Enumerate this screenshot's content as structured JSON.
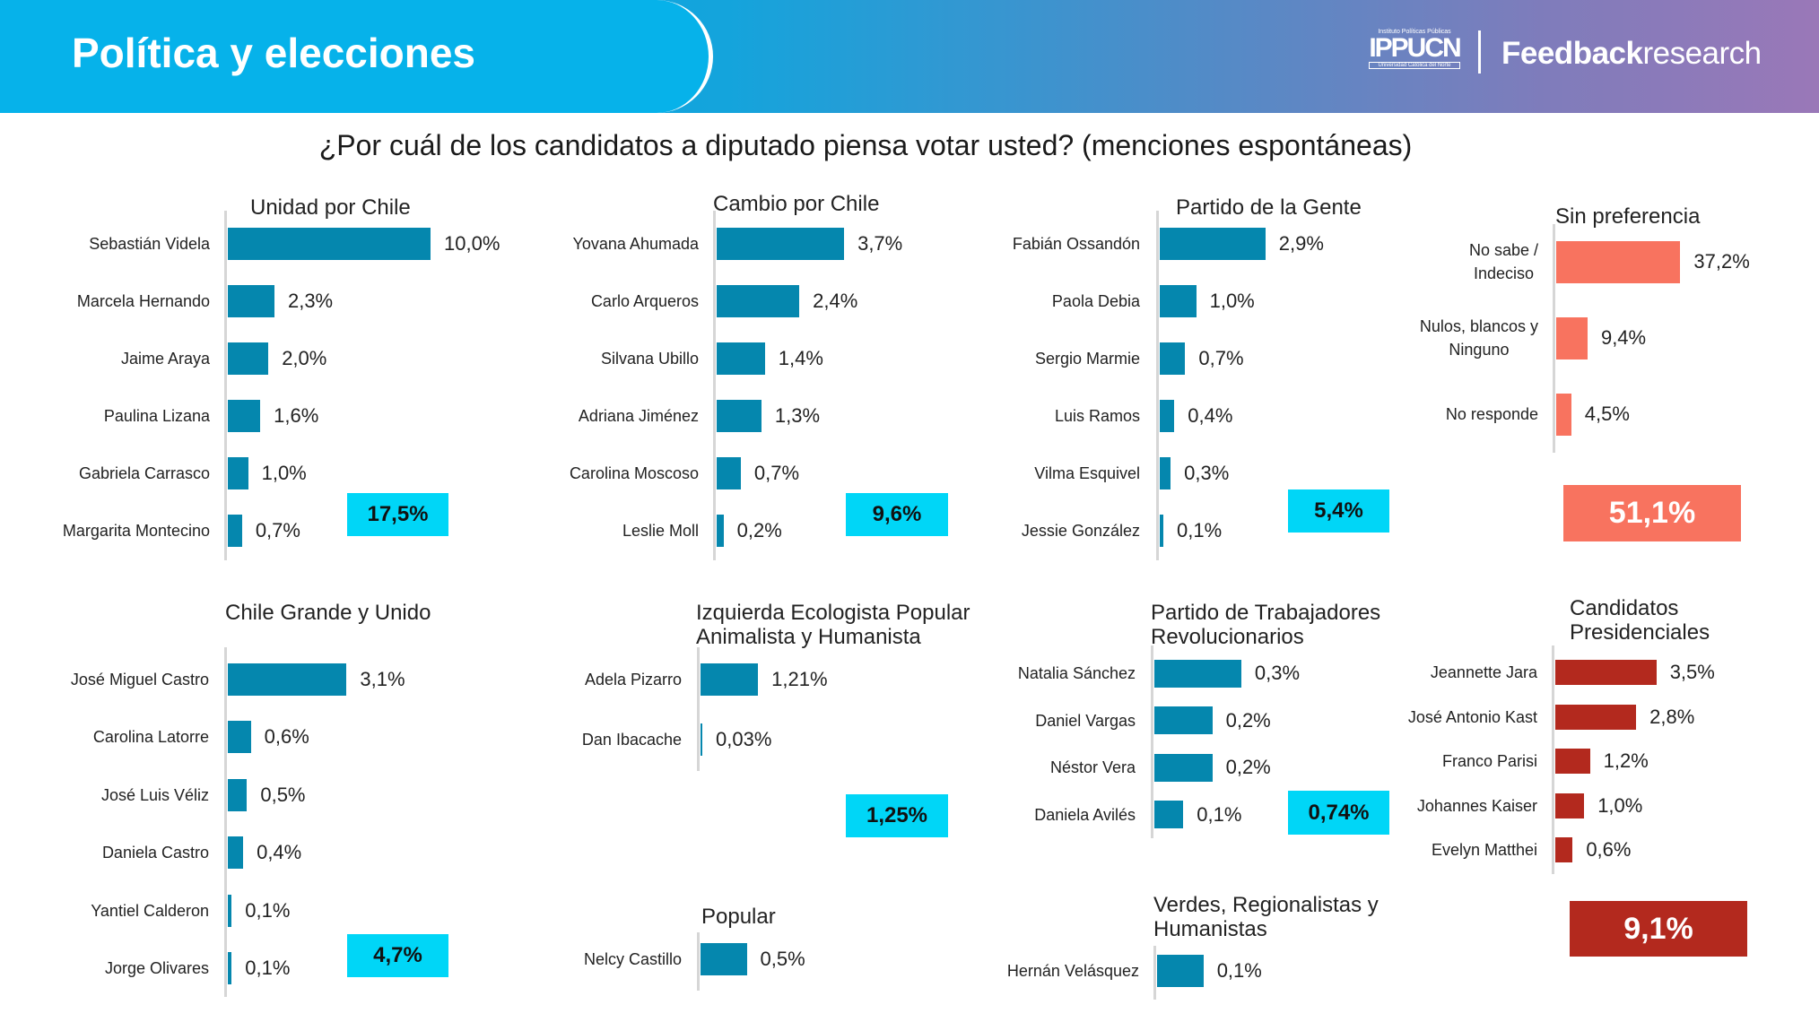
{
  "header": {
    "title": "Política y elecciones",
    "logo_ippucn": {
      "top": "Instituto Políticas Públicas",
      "main": "IPPUCN",
      "sub": "Universidad Católica del Norte"
    },
    "logo_feedback": {
      "bold": "Feedback",
      "light": "research"
    }
  },
  "question": "¿Por cuál de los candidatos a diputado piensa votar usted? (menciones espontáneas)",
  "colors": {
    "bar": "#0587ae",
    "total_box": "#00d6f7",
    "sin_preferencia": "#f8735f",
    "presidenciales": "#b3291e"
  },
  "chart_data": {
    "type": "bar",
    "orientation": "horizontal",
    "unit": "%",
    "panels": [
      {
        "title": "Unidad por Chile",
        "total": "17,5%",
        "rows": [
          {
            "name": "Sebastián Videla",
            "value": 10.0,
            "label": "10,0%"
          },
          {
            "name": "Marcela Hernando",
            "value": 2.3,
            "label": "2,3%"
          },
          {
            "name": "Jaime Araya",
            "value": 2.0,
            "label": "2,0%"
          },
          {
            "name": "Paulina Lizana",
            "value": 1.6,
            "label": "1,6%"
          },
          {
            "name": "Gabriela Carrasco",
            "value": 1.0,
            "label": "1,0%"
          },
          {
            "name": "Margarita Montecino",
            "value": 0.7,
            "label": "0,7%"
          }
        ]
      },
      {
        "title": "Cambio por Chile",
        "total": "9,6%",
        "rows": [
          {
            "name": "Yovana Ahumada",
            "value": 3.7,
            "label": "3,7%"
          },
          {
            "name": "Carlo Arqueros",
            "value": 2.4,
            "label": "2,4%"
          },
          {
            "name": "Silvana Ubillo",
            "value": 1.4,
            "label": "1,4%"
          },
          {
            "name": "Adriana Jiménez",
            "value": 1.3,
            "label": "1,3%"
          },
          {
            "name": "Carolina Moscoso",
            "value": 0.7,
            "label": "0,7%"
          },
          {
            "name": "Leslie Moll",
            "value": 0.2,
            "label": "0,2%"
          }
        ]
      },
      {
        "title": "Partido de la Gente",
        "total": "5,4%",
        "rows": [
          {
            "name": "Fabián Ossandón",
            "value": 2.9,
            "label": "2,9%"
          },
          {
            "name": "Paola Debia",
            "value": 1.0,
            "label": "1,0%"
          },
          {
            "name": "Sergio Marmie",
            "value": 0.7,
            "label": "0,7%"
          },
          {
            "name": "Luis Ramos",
            "value": 0.4,
            "label": "0,4%"
          },
          {
            "name": "Vilma Esquivel",
            "value": 0.3,
            "label": "0,3%"
          },
          {
            "name": "Jessie González",
            "value": 0.1,
            "label": "0,1%"
          }
        ]
      },
      {
        "title": "Sin preferencia",
        "total": "51,1%",
        "rows": [
          {
            "name": "No sabe /\nIndeciso",
            "value": 37.2,
            "label": "37,2%"
          },
          {
            "name": "Nulos, blancos y\nNinguno",
            "value": 9.4,
            "label": "9,4%"
          },
          {
            "name": "No responde",
            "value": 4.5,
            "label": "4,5%"
          }
        ]
      },
      {
        "title": "Chile Grande y Unido",
        "total": "4,7%",
        "rows": [
          {
            "name": "José Miguel Castro",
            "value": 3.1,
            "label": "3,1%"
          },
          {
            "name": "Carolina Latorre",
            "value": 0.6,
            "label": "0,6%"
          },
          {
            "name": "José Luis Véliz",
            "value": 0.5,
            "label": "0,5%"
          },
          {
            "name": "Daniela Castro",
            "value": 0.4,
            "label": "0,4%"
          },
          {
            "name": "Yantiel Calderon",
            "value": 0.1,
            "label": "0,1%"
          },
          {
            "name": "Jorge Olivares",
            "value": 0.1,
            "label": "0,1%"
          }
        ]
      },
      {
        "title": "Izquierda Ecologista Popular\nAnimalista y Humanista",
        "total": "1,25%",
        "rows": [
          {
            "name": "Adela Pizarro",
            "value": 1.21,
            "label": "1,21%"
          },
          {
            "name": "Dan Ibacache",
            "value": 0.03,
            "label": "0,03%"
          }
        ]
      },
      {
        "title": "Popular",
        "rows": [
          {
            "name": "Nelcy Castillo",
            "value": 0.5,
            "label": "0,5%"
          }
        ]
      },
      {
        "title": "Partido de Trabajadores\nRevolucionarios",
        "total": "0,74%",
        "rows": [
          {
            "name": "Natalia Sánchez",
            "value": 0.3,
            "label": "0,3%"
          },
          {
            "name": "Daniel Vargas",
            "value": 0.2,
            "label": "0,2%"
          },
          {
            "name": "Néstor Vera",
            "value": 0.2,
            "label": "0,2%"
          },
          {
            "name": "Daniela Avilés",
            "value": 0.1,
            "label": "0,1%"
          }
        ]
      },
      {
        "title": "Verdes, Regionalistas y\nHumanistas",
        "rows": [
          {
            "name": "Hernán Velásquez",
            "value": 0.1,
            "label": "0,1%"
          }
        ]
      },
      {
        "title": "Candidatos\nPresidenciales",
        "total": "9,1%",
        "rows": [
          {
            "name": "Jeannette Jara",
            "value": 3.5,
            "label": "3,5%"
          },
          {
            "name": "José Antonio Kast",
            "value": 2.8,
            "label": "2,8%"
          },
          {
            "name": "Franco Parisi",
            "value": 1.2,
            "label": "1,2%"
          },
          {
            "name": "Johannes Kaiser",
            "value": 1.0,
            "label": "1,0%"
          },
          {
            "name": "Evelyn Matthei",
            "value": 0.6,
            "label": "0,6%"
          }
        ]
      }
    ]
  }
}
